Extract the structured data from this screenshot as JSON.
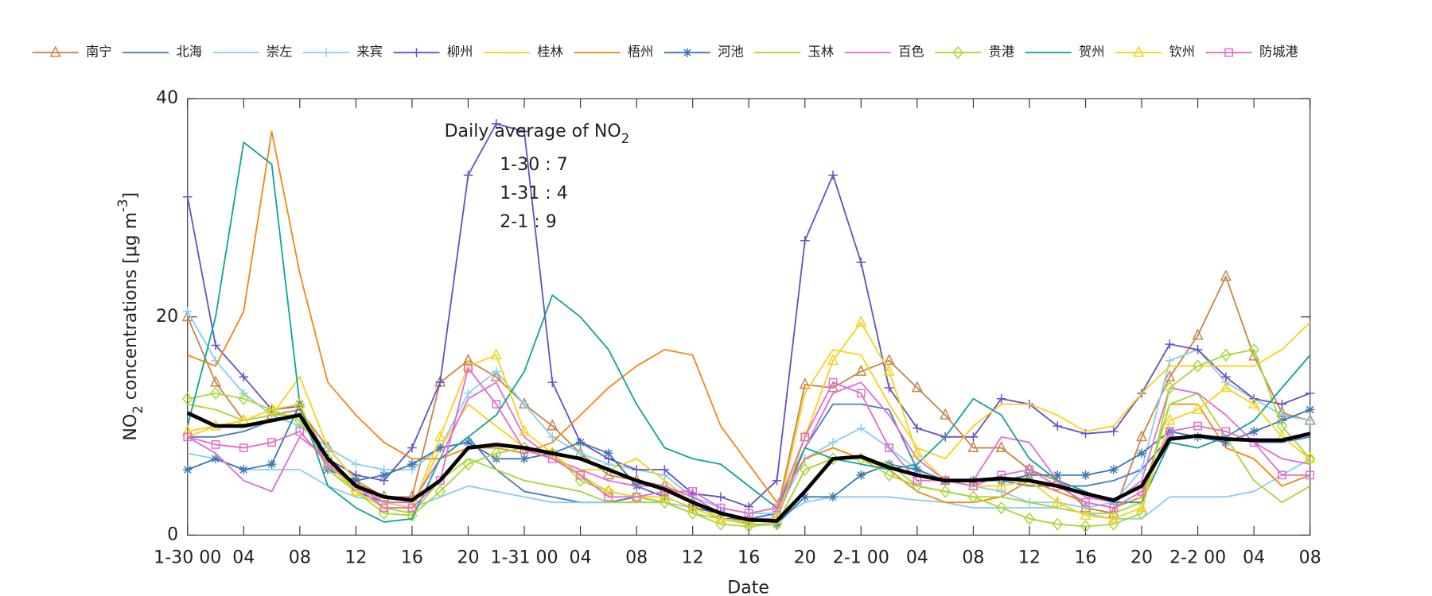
{
  "chart_data": {
    "type": "line",
    "xlabel": "Date",
    "ylabel": [
      {
        "text": "NO"
      },
      {
        "text": "2",
        "shift": "sub"
      },
      {
        "text": " concentrations [μg m"
      },
      {
        "text": "-3",
        "shift": "super"
      },
      {
        "text": "]"
      }
    ],
    "annotation": {
      "title": [
        {
          "text": "Daily average of NO"
        },
        {
          "text": "2",
          "shift": "sub"
        }
      ],
      "lines": [
        "1-30 : 7",
        "1-31 : 4",
        "2-1 : 9"
      ]
    },
    "xlim": [
      0,
      80
    ],
    "ylim": [
      0,
      40
    ],
    "yticks": [
      0,
      20,
      40
    ],
    "xticks": [
      {
        "value": 0,
        "label": "1-30 00"
      },
      {
        "value": 4,
        "label": "04"
      },
      {
        "value": 8,
        "label": "08"
      },
      {
        "value": 12,
        "label": "12"
      },
      {
        "value": 16,
        "label": "16"
      },
      {
        "value": 20,
        "label": "20"
      },
      {
        "value": 24,
        "label": "1-31 00"
      },
      {
        "value": 28,
        "label": "04"
      },
      {
        "value": 32,
        "label": "08"
      },
      {
        "value": 36,
        "label": "12"
      },
      {
        "value": 40,
        "label": "16"
      },
      {
        "value": 44,
        "label": "20"
      },
      {
        "value": 48,
        "label": "2-1 00"
      },
      {
        "value": 52,
        "label": "04"
      },
      {
        "value": 56,
        "label": "08"
      },
      {
        "value": 60,
        "label": "12"
      },
      {
        "value": 64,
        "label": "16"
      },
      {
        "value": 68,
        "label": "20"
      },
      {
        "value": 72,
        "label": "2-2 00"
      },
      {
        "value": 76,
        "label": "04"
      },
      {
        "value": 80,
        "label": "08"
      }
    ],
    "grid": false,
    "legend": "top",
    "x": [
      0,
      2,
      4,
      6,
      8,
      10,
      12,
      14,
      16,
      18,
      20,
      22,
      24,
      26,
      28,
      30,
      32,
      34,
      36,
      38,
      40,
      42,
      44,
      46,
      48,
      50,
      52,
      54,
      56,
      58,
      60,
      62,
      64,
      66,
      68,
      70,
      72,
      74,
      76,
      78,
      80
    ],
    "series": [
      {
        "name": "南宁",
        "color": "#c8864a",
        "marker": "triangle",
        "values": [
          20,
          14,
          10.5,
          11,
          11.5,
          8,
          5,
          3.5,
          3.5,
          14,
          16,
          14.5,
          12,
          10,
          7.5,
          5.5,
          5,
          4.5,
          3,
          1.5,
          1.5,
          2,
          13.8,
          13.5,
          15,
          16,
          13.5,
          11,
          8,
          8,
          6,
          5,
          2.5,
          2,
          9,
          14.5,
          18.3,
          23.7,
          16.4,
          11.2,
          10.5
        ]
      },
      {
        "name": "北海",
        "color": "#4a7fbf",
        "marker": "none",
        "values": [
          9,
          9,
          9.5,
          10.5,
          11,
          6,
          4,
          3,
          3,
          7,
          9,
          6,
          4,
          3.5,
          3,
          3,
          3.5,
          3,
          2,
          1.5,
          1.5,
          2,
          8,
          12,
          12,
          11.5,
          6,
          5,
          5,
          5,
          4.5,
          4.5,
          4.5,
          5,
          6,
          9,
          9,
          9,
          8.5,
          8.5,
          9
        ]
      },
      {
        "name": "崇左",
        "color": "#8ccdf2",
        "marker": "none",
        "values": [
          7.5,
          7,
          6,
          6,
          6,
          4.5,
          3.5,
          3,
          2.5,
          3.5,
          4.5,
          4,
          3.5,
          3,
          3,
          3,
          3,
          3,
          2.5,
          2,
          1.5,
          1.5,
          3,
          3.5,
          3.5,
          3.5,
          3.2,
          3,
          2.5,
          2.5,
          2.5,
          2.5,
          2,
          1.5,
          1.5,
          3.5,
          3.5,
          3.5,
          4,
          5.5,
          7
        ]
      },
      {
        "name": "来宾",
        "color": "#8ccdf2",
        "marker": "plus",
        "values": [
          20.5,
          16,
          13,
          11,
          10,
          8,
          6.5,
          6,
          6,
          8,
          13,
          15,
          12,
          9,
          7.5,
          6.5,
          6,
          5.5,
          3.5,
          2.5,
          2,
          2,
          7,
          8.5,
          9.8,
          8,
          6,
          5,
          4.5,
          4,
          3,
          3,
          2.5,
          3,
          6,
          16,
          17,
          14,
          12.5,
          11,
          10.5
        ]
      },
      {
        "name": "柳州",
        "color": "#6a52c4",
        "marker": "plus",
        "values": [
          31,
          17.4,
          14.5,
          11.5,
          11.8,
          7,
          5.5,
          5,
          8,
          14,
          33,
          37.7,
          37,
          14,
          8.5,
          7,
          6,
          6,
          3.8,
          3.5,
          2.6,
          5,
          27,
          33,
          25,
          13.5,
          9.8,
          9,
          9,
          12.5,
          12,
          10,
          9.3,
          9.5,
          13,
          17.5,
          17,
          14.5,
          12.5,
          12,
          13
        ]
      },
      {
        "name": "桂林",
        "color": "#f7d21e",
        "marker": "none",
        "values": [
          9,
          10,
          10.5,
          11,
          14.5,
          8,
          5,
          3,
          2.5,
          8,
          12,
          10,
          8,
          7,
          6,
          6,
          7,
          5,
          3,
          1.5,
          1.2,
          1.5,
          13,
          17,
          16.5,
          12,
          8,
          7,
          10,
          12,
          12,
          11,
          9.5,
          10,
          13,
          15.5,
          15.5,
          15.5,
          15.5,
          17,
          19.5
        ]
      },
      {
        "name": "梧州",
        "color": "#f2891a",
        "marker": "none",
        "values": [
          16.5,
          15.5,
          20.5,
          37,
          24,
          14,
          11,
          8.5,
          7,
          7,
          8,
          8,
          7.5,
          8.5,
          11,
          13.5,
          15.5,
          17,
          16.5,
          10,
          6.5,
          3,
          7,
          8,
          7,
          6,
          4,
          3,
          3,
          3.5,
          5,
          4,
          3,
          2.5,
          3.5,
          12,
          12,
          8,
          7,
          4.5,
          5.5
        ]
      },
      {
        "name": "河池",
        "color": "#3d78b5",
        "marker": "star",
        "values": [
          6,
          7,
          6,
          6.5,
          12,
          6,
          5,
          5.5,
          6.5,
          8,
          8.5,
          7,
          7,
          7.5,
          8.5,
          7.5,
          4.5,
          3.5,
          2.5,
          2,
          1,
          1,
          3.5,
          3.5,
          5.5,
          6.5,
          6,
          5,
          5,
          5,
          5.5,
          5.5,
          5.5,
          6,
          7.5,
          9.5,
          9,
          8.5,
          9.5,
          10.5,
          11.5
        ]
      },
      {
        "name": "玉林",
        "color": "#a8d83a",
        "marker": "none",
        "values": [
          12,
          11.5,
          10.5,
          11,
          11,
          6,
          4,
          2.5,
          2,
          5,
          7,
          6,
          5,
          4.5,
          4,
          3,
          3,
          3,
          2,
          1.5,
          1,
          1,
          6,
          7,
          7,
          6.5,
          4.5,
          4,
          3.5,
          3.5,
          3,
          2.5,
          2,
          2,
          3,
          12,
          13,
          9,
          5,
          3,
          4.5
        ]
      },
      {
        "name": "百色",
        "color": "#e06fd8",
        "marker": "none",
        "values": [
          9,
          7.5,
          5,
          4,
          9,
          7,
          4.5,
          3,
          3,
          7,
          12.5,
          14,
          9,
          7,
          6,
          5,
          4.5,
          4.5,
          3.5,
          2,
          1.5,
          1.5,
          8,
          13,
          14,
          11,
          7,
          5,
          5,
          9,
          8.5,
          5,
          3.5,
          3,
          5,
          13.5,
          13,
          11,
          8.5,
          7,
          6.5
        ]
      },
      {
        "name": "贵港",
        "color": "#a8d83a",
        "marker": "diamond",
        "values": [
          12.5,
          13,
          12.5,
          11.5,
          10.5,
          7,
          4,
          2,
          1.8,
          4,
          6.5,
          7.5,
          8,
          7.5,
          5,
          4,
          3.5,
          3,
          2,
          1,
          0.8,
          1,
          6,
          7,
          7,
          5.5,
          4.5,
          4,
          3.5,
          2.5,
          1.5,
          1,
          0.8,
          1,
          2,
          13.5,
          15.5,
          16.5,
          17,
          10,
          7
        ]
      },
      {
        "name": "贺州",
        "color": "#16a398",
        "marker": "none",
        "values": [
          10,
          20,
          36,
          34,
          12,
          4.5,
          2.5,
          1.2,
          1.5,
          7,
          9,
          11,
          15,
          22,
          20,
          17,
          12,
          8,
          7,
          6.5,
          4.5,
          2.5,
          8,
          7,
          6.5,
          6,
          6.5,
          9,
          12.5,
          11,
          7,
          5,
          4,
          3,
          3,
          8.5,
          8,
          9,
          10.5,
          13.5,
          16.5
        ]
      },
      {
        "name": "钦州",
        "color": "#f7d21e",
        "marker": "triangle",
        "values": [
          9.5,
          10,
          10.5,
          11.5,
          12,
          6.5,
          4,
          2.5,
          2.5,
          9,
          15.5,
          16.5,
          9.5,
          7.5,
          5.5,
          4,
          3.5,
          3.5,
          2.5,
          1.5,
          1.2,
          1.5,
          9,
          16,
          19.5,
          15,
          7.5,
          5,
          4.5,
          4.5,
          5,
          3,
          1.8,
          1.5,
          2.5,
          10.5,
          11.5,
          13.5,
          12,
          9,
          7
        ]
      },
      {
        "name": "防城港",
        "color": "#e06fcc",
        "marker": "square",
        "values": [
          9,
          8.3,
          8,
          8.5,
          9.5,
          6.5,
          4.5,
          2.5,
          2.5,
          5,
          15.3,
          12,
          7.8,
          7,
          5.5,
          3.5,
          3.5,
          4,
          4,
          2.5,
          2,
          2.5,
          9,
          14,
          13,
          8,
          5,
          5,
          4.5,
          5.5,
          6,
          4.5,
          3,
          2.5,
          4,
          9.5,
          10,
          9.5,
          8.5,
          5.5,
          5.5
        ]
      }
    ],
    "average": {
      "color": "#000000",
      "values": [
        11.2,
        10,
        10,
        10.5,
        11,
        7,
        4.5,
        3.5,
        3.2,
        5,
        8,
        8.3,
        8,
        7.5,
        7,
        6,
        5,
        4.2,
        3,
        2,
        1.4,
        1.3,
        4,
        7,
        7.2,
        6.2,
        5.5,
        5,
        5,
        5.2,
        5,
        4.5,
        3.8,
        3.2,
        4.5,
        8.8,
        9.1,
        8.8,
        8.7,
        8.7,
        9.3
      ]
    }
  }
}
